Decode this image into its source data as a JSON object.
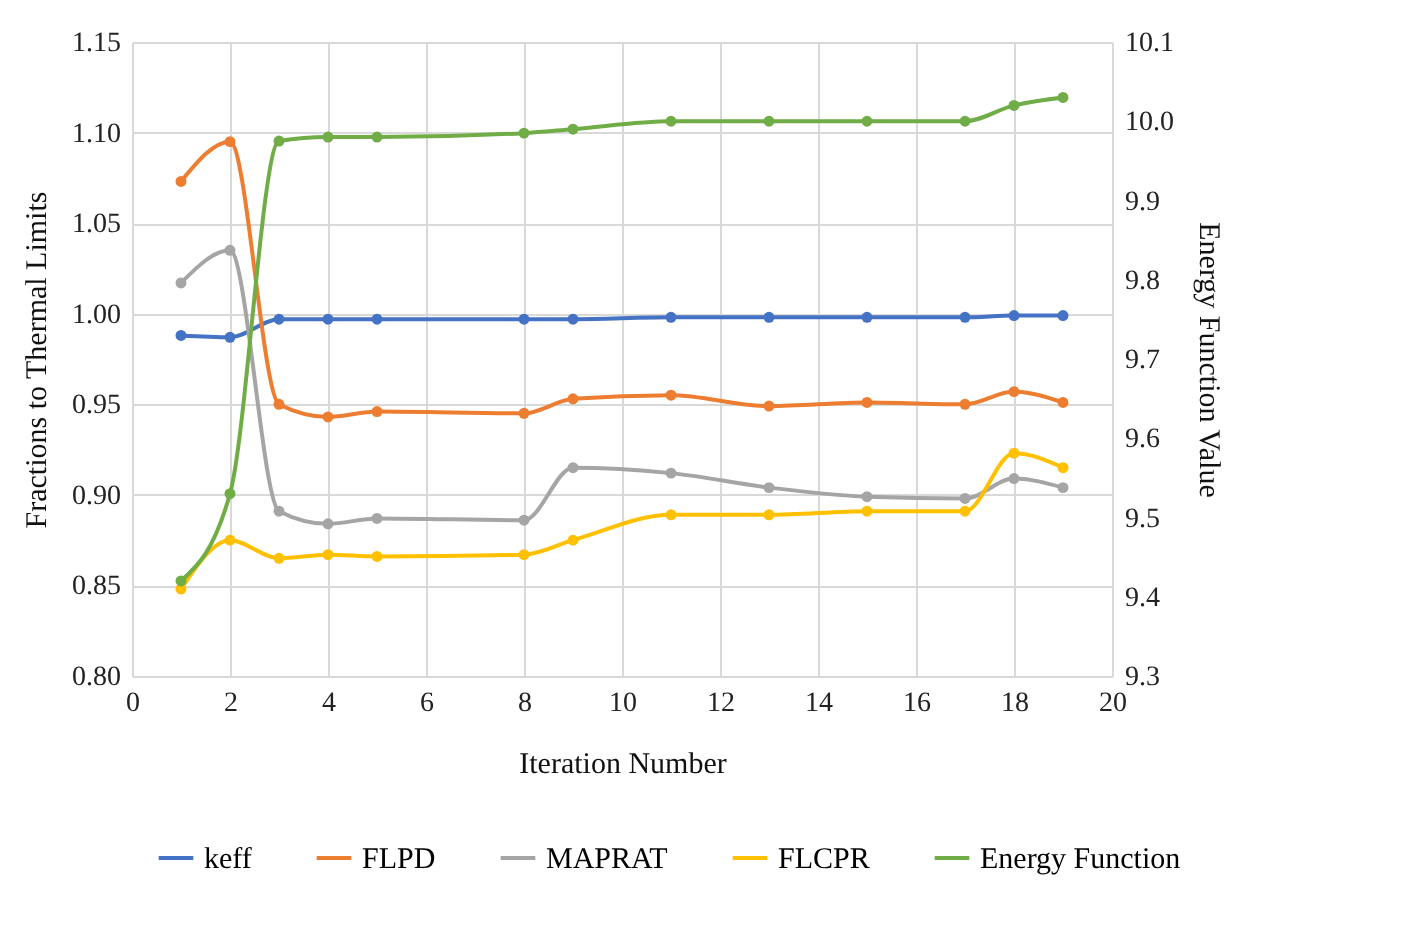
{
  "chart_data": {
    "type": "line",
    "xlabel": "Iteration Number",
    "ylabel": "Fractions to Thermal Limits",
    "y2label": "Energy Function Value",
    "x": [
      1,
      2,
      3,
      4,
      5,
      8,
      9,
      11,
      13,
      15,
      17,
      18,
      19
    ],
    "xlim": [
      0,
      20
    ],
    "xticks": [
      0,
      2,
      4,
      6,
      8,
      10,
      12,
      14,
      16,
      18,
      20
    ],
    "ylim": [
      0.8,
      1.15
    ],
    "yticks": [
      {
        "value": 0.8,
        "label": "0.80"
      },
      0.85,
      {
        "value": 0.9,
        "label": "0.90"
      },
      0.95,
      {
        "value": 1,
        "label": "1.00"
      },
      1.05,
      {
        "value": 1.1,
        "label": "1.10"
      },
      1.15
    ],
    "y2lim": [
      9.3,
      10.1
    ],
    "y2ticks": [
      9.3,
      9.4,
      9.5,
      9.6,
      9.7,
      9.8,
      9.9,
      {
        "value": 10,
        "label": "10.0"
      },
      10.1
    ],
    "grid": true,
    "legend": "bottom",
    "marker": "circle",
    "line_style": "solid",
    "series": [
      {
        "name": "keff",
        "color": "#4472c4",
        "values": [
          0.988,
          0.987,
          0.997,
          0.997,
          0.997,
          0.997,
          0.997,
          0.998,
          0.998,
          0.998,
          0.998,
          0.999,
          0.999
        ]
      },
      {
        "name": "FLPD",
        "color": "#ed7d31",
        "values": [
          1.073,
          1.095,
          0.95,
          0.943,
          0.946,
          0.945,
          0.953,
          0.955,
          0.949,
          0.951,
          0.95,
          0.957,
          0.951
        ]
      },
      {
        "name": "MAPRAT",
        "color": "#a5a5a5",
        "values": [
          1.017,
          1.035,
          0.891,
          0.884,
          0.887,
          0.886,
          0.915,
          0.912,
          0.904,
          0.899,
          0.898,
          0.909,
          0.904
        ]
      },
      {
        "name": "FLCPR",
        "color": "#ffc000",
        "values": [
          0.848,
          0.875,
          0.865,
          0.867,
          0.866,
          0.867,
          0.875,
          0.889,
          0.889,
          0.891,
          0.891,
          0.923,
          0.915
        ]
      },
      {
        "name": "Energy Function",
        "color": "#70ad47",
        "axis": "y2",
        "values": [
          9.42,
          9.53,
          9.975,
          9.98,
          9.98,
          9.985,
          9.99,
          10.0,
          10.0,
          10.0,
          10.0,
          10.02,
          10.03
        ]
      }
    ]
  }
}
